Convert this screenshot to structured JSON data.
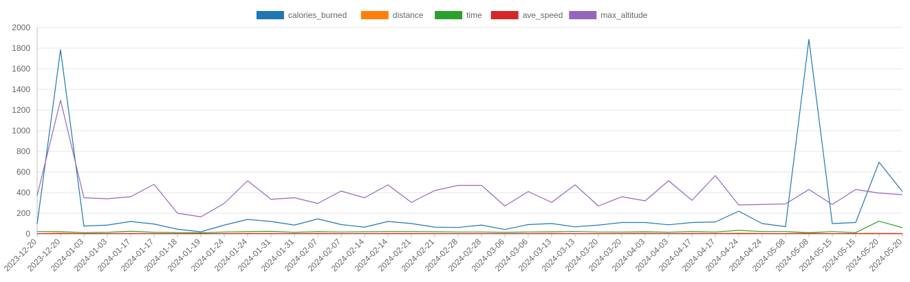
{
  "chart_data": {
    "type": "line",
    "categories": [
      "2023-12-20",
      "2023-12-20",
      "2024-01-03",
      "2024-01-03",
      "2024-01-17",
      "2024-01-17",
      "2024-01-18",
      "2024-01-19",
      "2024-01-24",
      "2024-01-24",
      "2024-01-31",
      "2024-01-31",
      "2024-02-07",
      "2024-02-07",
      "2024-02-14",
      "2024-02-14",
      "2024-02-21",
      "2024-02-21",
      "2024-02-28",
      "2024-02-28",
      "2024-03-06",
      "2024-03-06",
      "2024-03-13",
      "2024-03-13",
      "2024-03-20",
      "2024-03-20",
      "2024-04-03",
      "2024-04-03",
      "2024-04-17",
      "2024-04-17",
      "2024-04-24",
      "2024-04-24",
      "2024-05-08",
      "2024-05-08",
      "2024-05-15",
      "2024-05-15",
      "2024-05-20",
      "2024-05-20"
    ],
    "series": [
      {
        "name": "calories_burned",
        "color": "#1f77b4",
        "values": [
          95,
          1785,
          75,
          85,
          120,
          95,
          45,
          20,
          85,
          140,
          120,
          85,
          145,
          90,
          65,
          120,
          100,
          65,
          62,
          85,
          42,
          90,
          100,
          68,
          85,
          110,
          110,
          88,
          110,
          115,
          220,
          100,
          70,
          1885,
          100,
          110,
          695,
          410
        ]
      },
      {
        "name": "distance",
        "color": "#ff7f0e",
        "values": [
          3,
          8,
          3,
          3,
          4,
          3,
          2,
          1,
          3,
          5,
          4,
          3,
          5,
          3,
          3,
          4,
          4,
          3,
          3,
          3,
          2,
          3,
          4,
          3,
          3,
          4,
          4,
          3,
          4,
          4,
          7,
          4,
          3,
          8,
          3,
          4,
          5,
          4
        ]
      },
      {
        "name": "time",
        "color": "#2ca02c",
        "values": [
          22,
          22,
          12,
          15,
          25,
          15,
          12,
          10,
          18,
          22,
          24,
          15,
          22,
          18,
          20,
          22,
          22,
          20,
          18,
          18,
          15,
          18,
          20,
          22,
          18,
          18,
          20,
          16,
          22,
          18,
          34,
          22,
          22,
          12,
          22,
          12,
          123,
          60
        ]
      },
      {
        "name": "ave_speed",
        "color": "#d62728",
        "values": [
          2,
          2,
          2,
          2,
          2,
          2,
          2,
          2,
          2,
          2,
          2,
          2,
          2,
          2,
          2,
          2,
          2,
          2,
          2,
          2,
          2,
          2,
          2,
          2,
          2,
          2,
          2,
          2,
          2,
          2,
          2,
          2,
          2,
          2,
          2,
          2,
          2,
          2
        ]
      },
      {
        "name": "max_altitude",
        "color": "#9467bd",
        "values": [
          370,
          1295,
          350,
          340,
          360,
          480,
          200,
          165,
          295,
          515,
          335,
          350,
          295,
          415,
          350,
          475,
          305,
          420,
          470,
          470,
          270,
          410,
          305,
          475,
          270,
          360,
          320,
          515,
          325,
          565,
          280,
          285,
          290,
          430,
          285,
          430,
          395,
          380
        ]
      }
    ],
    "ylim": [
      0,
      2000
    ],
    "yticks": [
      "0",
      "200",
      "400",
      "600",
      "800",
      "1000",
      "1200",
      "1400",
      "1600",
      "1800",
      "2000"
    ],
    "grid": true,
    "legend_position": "top"
  }
}
